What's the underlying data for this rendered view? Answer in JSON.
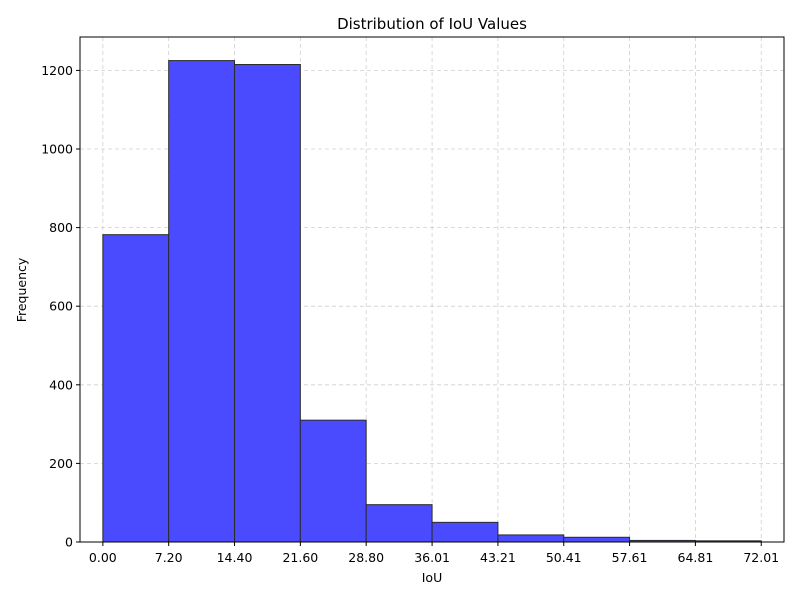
{
  "chart_data": {
    "type": "bar",
    "title": "Distribution of IoU Values",
    "xlabel": "IoU",
    "ylabel": "Frequency",
    "bin_edges": [
      0.0,
      7.2,
      14.4,
      21.6,
      28.8,
      36.01,
      43.21,
      50.41,
      57.61,
      64.81,
      72.01
    ],
    "x_tick_labels": [
      "0.00",
      "7.20",
      "14.40",
      "21.60",
      "28.80",
      "36.01",
      "43.21",
      "50.41",
      "57.61",
      "64.81",
      "72.01"
    ],
    "values": [
      782,
      1225,
      1215,
      310,
      95,
      50,
      18,
      12,
      4,
      3
    ],
    "xlim": [
      -2.5,
      74.5
    ],
    "ylim": [
      0,
      1285
    ],
    "y_ticks": [
      0,
      200,
      400,
      600,
      800,
      1000,
      1200
    ],
    "grid": true,
    "bar_color": "#4a4aff",
    "edge_color": "#2b2b2b"
  }
}
